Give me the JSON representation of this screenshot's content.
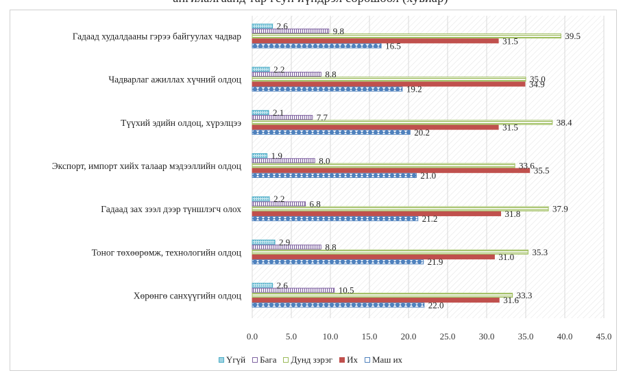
{
  "title": "ангилалгаанд тар гсун иүндрэл сорошоол (хувиар)",
  "chart_data": {
    "type": "bar",
    "orientation": "horizontal",
    "categories": [
      "Гадаад худалдааны гэрээ байгуулах чадвар",
      "Чадварлаг ажиллах хүчний олдоц",
      "Түүхий эдийн олдоц, хүрэлцээ",
      "Экспорт, импорт хийх талаар мэдээллийн олдоц",
      "Гадаад зах зээл дээр түншлэгч олох",
      "Тоног төхөөрөмж, технологийн олдоц",
      "Хөрөнгө санхүүгийн олдоц"
    ],
    "series": [
      {
        "name": "Үгүй",
        "color": "#4bacc6",
        "pattern": "dots-light",
        "values": [
          2.6,
          2.2,
          2.1,
          1.9,
          2.2,
          2.9,
          2.6
        ]
      },
      {
        "name": "Бага",
        "color": "#8064a2",
        "pattern": "vertical-lines",
        "values": [
          9.8,
          8.8,
          7.7,
          8.0,
          6.8,
          8.8,
          10.5
        ]
      },
      {
        "name": "Дунд зэрэг",
        "color": "#9bbb59",
        "pattern": "horizontal-lines",
        "values": [
          39.5,
          35.0,
          38.4,
          33.6,
          37.9,
          35.3,
          33.3
        ]
      },
      {
        "name": "Их",
        "color": "#c0504d",
        "pattern": "solid",
        "values": [
          31.5,
          34.9,
          31.5,
          35.5,
          31.8,
          31.0,
          31.6
        ]
      },
      {
        "name": "Маш их",
        "color": "#4f81bd",
        "pattern": "mixed",
        "values": [
          16.5,
          19.2,
          20.2,
          21.0,
          21.2,
          21.9,
          22.0
        ]
      }
    ],
    "value_labels": [
      [
        "2.6",
        "2.2",
        "2.1",
        "1.9",
        "2.2",
        "2.9",
        "2.6"
      ],
      [
        "9.8",
        "8.8",
        "7.7",
        "8.0",
        "6.8",
        "8.8",
        "10.5"
      ],
      [
        "39.5",
        "35.0",
        "38.4",
        "33.6",
        "37.9",
        "35.3",
        "33.3"
      ],
      [
        "31.5",
        "34.9",
        "31.5",
        "35.5",
        "31.8",
        "31.0",
        "31.6"
      ],
      [
        "16.5",
        "19.2",
        "20.2",
        "21.0",
        "21.2",
        "21.9",
        "22.0"
      ]
    ],
    "xlim": [
      0,
      45
    ],
    "ticks": [
      "0.0",
      "5.0",
      "10.0",
      "15.0",
      "20.0",
      "25.0",
      "30.0",
      "35.0",
      "40.0",
      "45.0"
    ],
    "tick_values": [
      0,
      5,
      10,
      15,
      20,
      25,
      30,
      35,
      40,
      45
    ],
    "plot_background": "diagonal-hatch",
    "gridlines": "vertical",
    "legend_position": "bottom"
  }
}
